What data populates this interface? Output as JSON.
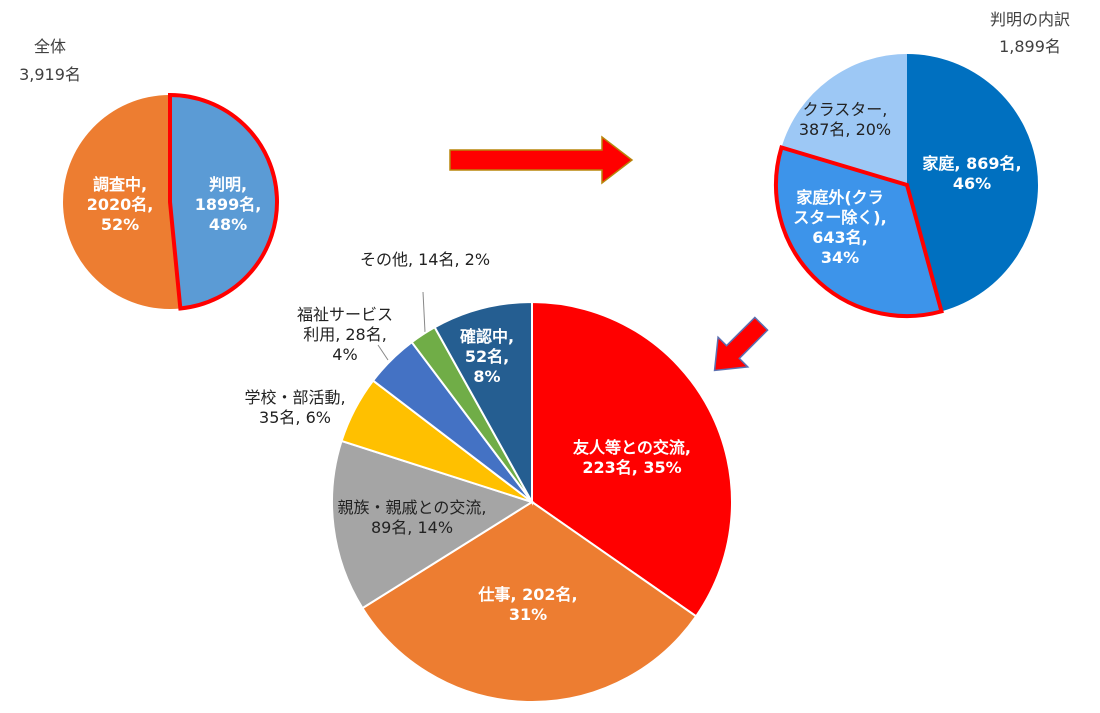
{
  "chart_data": [
    {
      "type": "pie",
      "title": "全体",
      "subtitle": "3,919名",
      "values": [
        1899,
        2020
      ],
      "value_labels": [
        "判明,\n1899名,\n48%",
        "調査中,\n2020名,\n52%"
      ],
      "colors": [
        "#5b9bd5",
        "#ed7d31"
      ],
      "highlight": 0
    },
    {
      "type": "pie",
      "title": "判明の内訳",
      "subtitle": "1,899名",
      "values": [
        869,
        643,
        387
      ],
      "value_labels": [
        "家庭, 869名,\n46%",
        "家庭外(クラ\nスター除く),\n643名,\n34%",
        "クラスター,\n387名, 20%"
      ],
      "colors": [
        "#0070c0",
        "#3d94ea",
        "#9dc8f5"
      ],
      "highlight": 1
    },
    {
      "type": "pie",
      "values": [
        223,
        202,
        89,
        35,
        28,
        14,
        52
      ],
      "value_labels": [
        "友人等との交流,\n223名, 35%",
        "仕事, 202名,\n31%",
        "親族・親戚との交流,\n89名, 14%",
        "学校・部活動,\n35名, 6%",
        "福祉サービス\n利用, 28名,\n4%",
        "その他, 14名, 2%",
        "確認中,\n52名,\n8%"
      ],
      "colors": [
        "#ff0000",
        "#ed7d31",
        "#a5a5a5",
        "#ffc000",
        "#4472c4",
        "#70ad47",
        "#255e91"
      ]
    }
  ]
}
